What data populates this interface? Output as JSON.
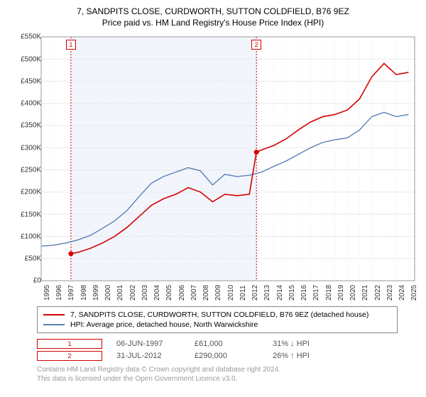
{
  "title_line1": "7, SANDPITS CLOSE, CURDWORTH, SUTTON COLDFIELD, B76 9EZ",
  "title_line2": "Price paid vs. HM Land Registry's House Price Index (HPI)",
  "chart": {
    "type": "line",
    "background_color": "#ffffff",
    "plot_bg": "#ffffff",
    "shaded_bg": "#f2f6fc",
    "grid_color": "#e9e9e9",
    "x_years": [
      1995,
      1996,
      1997,
      1998,
      1999,
      2000,
      2001,
      2002,
      2003,
      2004,
      2005,
      2006,
      2007,
      2008,
      2009,
      2010,
      2011,
      2012,
      2013,
      2014,
      2015,
      2016,
      2017,
      2018,
      2019,
      2020,
      2021,
      2022,
      2023,
      2024,
      2025
    ],
    "xlim": [
      1995,
      2025.5
    ],
    "y_ticks": [
      0,
      50000,
      100000,
      150000,
      200000,
      250000,
      300000,
      350000,
      400000,
      450000,
      500000,
      550000
    ],
    "y_labels": [
      "£0",
      "£50K",
      "£100K",
      "£150K",
      "£200K",
      "£250K",
      "£300K",
      "£350K",
      "£400K",
      "£450K",
      "£500K",
      "£550K"
    ],
    "ylim": [
      0,
      550000
    ],
    "shaded_span": [
      1997.43,
      2012.58
    ],
    "series": {
      "price_paid": {
        "color": "#d40000",
        "width": 1.6,
        "points": [
          [
            1997.43,
            61000
          ],
          [
            1998,
            64000
          ],
          [
            1999,
            73000
          ],
          [
            2000,
            85000
          ],
          [
            2001,
            100000
          ],
          [
            2002,
            120000
          ],
          [
            2003,
            145000
          ],
          [
            2004,
            170000
          ],
          [
            2005,
            185000
          ],
          [
            2006,
            195000
          ],
          [
            2007,
            210000
          ],
          [
            2008,
            200000
          ],
          [
            2009,
            178000
          ],
          [
            2010,
            195000
          ],
          [
            2011,
            192000
          ],
          [
            2012,
            195000
          ],
          [
            2012.58,
            290000
          ],
          [
            2013,
            295000
          ],
          [
            2014,
            305000
          ],
          [
            2015,
            320000
          ],
          [
            2016,
            340000
          ],
          [
            2017,
            358000
          ],
          [
            2018,
            370000
          ],
          [
            2019,
            375000
          ],
          [
            2020,
            385000
          ],
          [
            2021,
            410000
          ],
          [
            2022,
            460000
          ],
          [
            2023,
            490000
          ],
          [
            2024,
            465000
          ],
          [
            2025,
            470000
          ]
        ]
      },
      "hpi": {
        "color": "#5b7fb5",
        "width": 1.4,
        "points": [
          [
            1995,
            78000
          ],
          [
            1996,
            80000
          ],
          [
            1997,
            85000
          ],
          [
            1998,
            92000
          ],
          [
            1999,
            102000
          ],
          [
            2000,
            118000
          ],
          [
            2001,
            135000
          ],
          [
            2002,
            158000
          ],
          [
            2003,
            190000
          ],
          [
            2004,
            220000
          ],
          [
            2005,
            235000
          ],
          [
            2006,
            245000
          ],
          [
            2007,
            255000
          ],
          [
            2008,
            248000
          ],
          [
            2009,
            216000
          ],
          [
            2010,
            240000
          ],
          [
            2011,
            235000
          ],
          [
            2012,
            238000
          ],
          [
            2013,
            245000
          ],
          [
            2014,
            258000
          ],
          [
            2015,
            270000
          ],
          [
            2016,
            285000
          ],
          [
            2017,
            300000
          ],
          [
            2018,
            312000
          ],
          [
            2019,
            318000
          ],
          [
            2020,
            322000
          ],
          [
            2021,
            340000
          ],
          [
            2022,
            370000
          ],
          [
            2023,
            380000
          ],
          [
            2024,
            370000
          ],
          [
            2025,
            375000
          ]
        ]
      }
    },
    "sale_markers": [
      {
        "n": "1",
        "x": 1997.43,
        "y": 61000,
        "color": "#d40000"
      },
      {
        "n": "2",
        "x": 2012.58,
        "y": 290000,
        "color": "#d40000"
      }
    ]
  },
  "legend": {
    "items": [
      {
        "color": "#d40000",
        "label": "7, SANDPITS CLOSE, CURDWORTH, SUTTON COLDFIELD, B76 9EZ (detached house)"
      },
      {
        "color": "#5b7fb5",
        "label": "HPI: Average price, detached house, North Warwickshire"
      }
    ]
  },
  "sales": [
    {
      "n": "1",
      "date": "06-JUN-1997",
      "price": "£61,000",
      "hpi_delta": "31% ↓ HPI"
    },
    {
      "n": "2",
      "date": "31-JUL-2012",
      "price": "£290,000",
      "hpi_delta": "26% ↑ HPI"
    }
  ],
  "attribution_line1": "Contains HM Land Registry data © Crown copyright and database right 2024.",
  "attribution_line2": "This data is licensed under the Open Government Licence v3.0.",
  "marker_border": "#d40000",
  "label_fontsize": 10,
  "title_fontsize": 12
}
